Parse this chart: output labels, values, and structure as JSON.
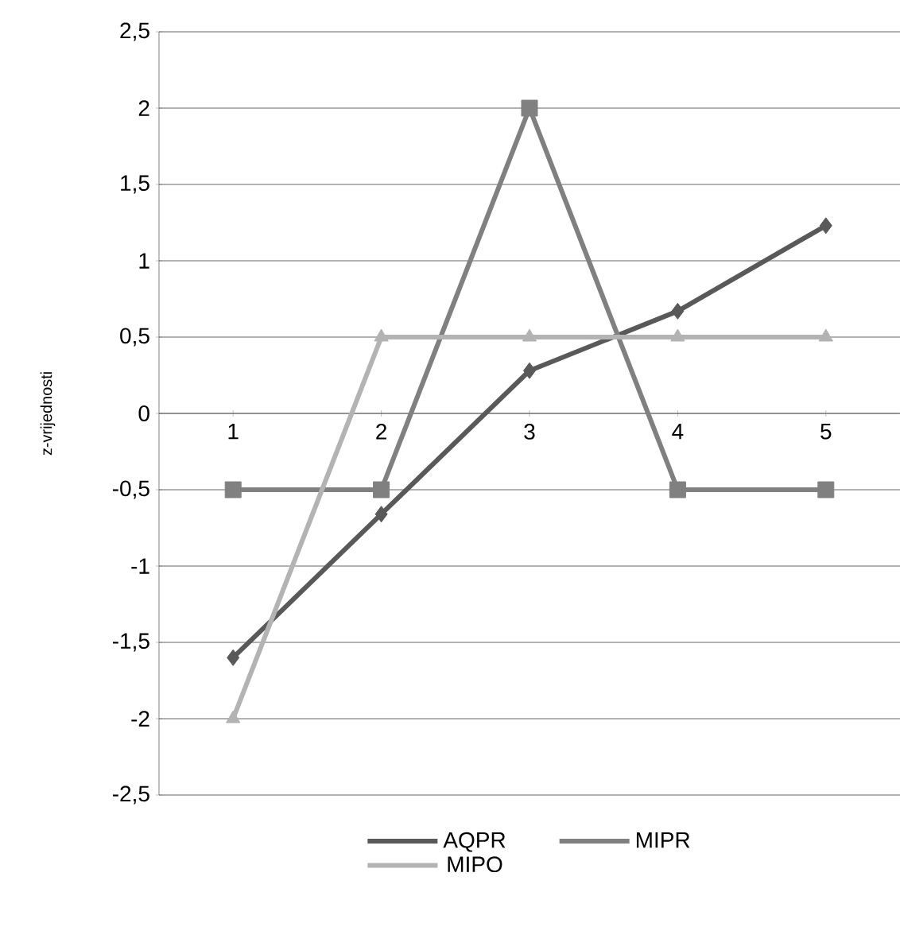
{
  "chart_data": {
    "type": "line",
    "ylabel": "z-vrijednosti",
    "categories": [
      "1",
      "2",
      "3",
      "4",
      "5"
    ],
    "series": [
      {
        "name": "AQPR",
        "color": "#595959",
        "marker": "diamond",
        "values": [
          -1.6,
          -0.66,
          0.28,
          0.67,
          1.23
        ]
      },
      {
        "name": "MIPR",
        "color": "#808080",
        "marker": "square",
        "values": [
          -0.5,
          -0.5,
          2,
          -0.5,
          -0.5
        ]
      },
      {
        "name": "MIPO",
        "color": "#b3b3b3",
        "marker": "triangle",
        "values": [
          -2,
          0.5,
          0.5,
          0.5,
          0.5
        ]
      }
    ],
    "ylim": [
      -2.5,
      2.5
    ],
    "yticks": [
      {
        "value": -2.5,
        "label": "-2,5"
      },
      -2,
      {
        "value": -1.5,
        "label": "-1,5"
      },
      -1,
      {
        "value": -0.5,
        "label": "-0,5"
      },
      0,
      {
        "value": 0.5,
        "label": "0,5"
      },
      1,
      {
        "value": 1.5,
        "label": "1,5"
      },
      2,
      {
        "value": 2.5,
        "label": "2,5"
      }
    ],
    "grid": "y",
    "legend": "bottom"
  }
}
